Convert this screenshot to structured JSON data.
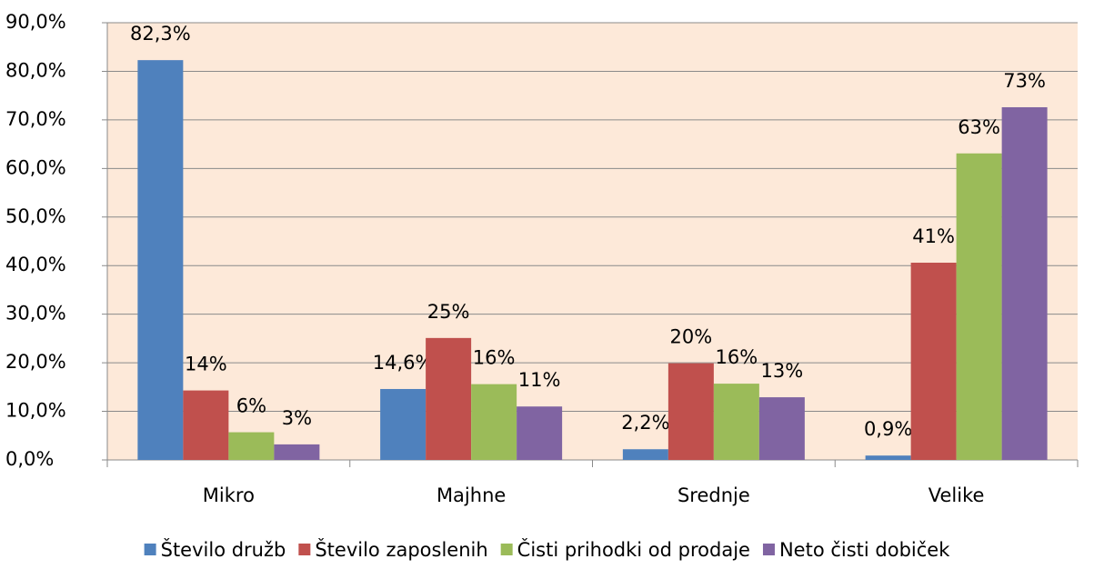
{
  "chart_data": {
    "type": "bar",
    "categories": [
      "Mikro",
      "Majhne",
      "Srednje",
      "Velike"
    ],
    "series": [
      {
        "name": "Število družb",
        "color": "#4f81bd",
        "values": [
          82.3,
          14.6,
          2.2,
          0.9
        ],
        "value_labels": [
          "82,3%",
          "14,6%",
          "2,2%",
          "0,9%"
        ]
      },
      {
        "name": "Število zaposlenih",
        "color": "#c0504d",
        "values": [
          14.3,
          25.1,
          19.9,
          40.6
        ],
        "value_labels": [
          "14%",
          "25%",
          "20%",
          "41%"
        ]
      },
      {
        "name": "Čisti prihodki od prodaje",
        "color": "#9bbb59",
        "values": [
          5.7,
          15.6,
          15.7,
          63.1
        ],
        "value_labels": [
          "6%",
          "16%",
          "16%",
          "63%"
        ]
      },
      {
        "name": "Neto čisti dobiček",
        "color": "#8064a2",
        "values": [
          3.2,
          11.0,
          12.9,
          72.6
        ],
        "value_labels": [
          "3%",
          "11%",
          "13%",
          "73%"
        ]
      }
    ],
    "ylim": [
      0,
      90
    ],
    "yticks": [
      {
        "value": 0,
        "label": "0,0%"
      },
      {
        "value": 10,
        "label": "10,0%"
      },
      {
        "value": 20,
        "label": "20,0%"
      },
      {
        "value": 30,
        "label": "30,0%"
      },
      {
        "value": 40,
        "label": "40,0%"
      },
      {
        "value": 50,
        "label": "50,0%"
      },
      {
        "value": 60,
        "label": "60,0%"
      },
      {
        "value": 70,
        "label": "70,0%"
      },
      {
        "value": 80,
        "label": "80,0%"
      },
      {
        "value": 90,
        "label": "90,0%"
      }
    ],
    "grid": true,
    "legend": "bottom"
  }
}
